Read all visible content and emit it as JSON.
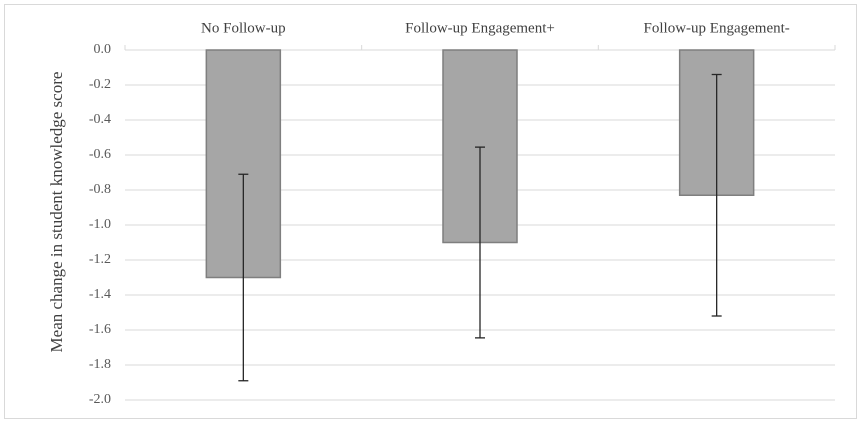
{
  "chart_data": {
    "type": "bar",
    "y_label": "Mean change in student knowledge score",
    "categories": [
      "No Follow-up",
      "Follow-up Engagement+",
      "Follow-up Engagement-"
    ],
    "values": [
      -1.3,
      -1.1,
      -0.83
    ],
    "errors": [
      0.59,
      0.545,
      0.69
    ],
    "color": "#a6a6a6",
    "ylim": [
      -2.0,
      0
    ],
    "yticks": [
      {
        "value": 0,
        "label": "0.0"
      },
      -0.2,
      -0.4,
      -0.6,
      -0.8,
      {
        "value": -1.0,
        "label": "-1.0"
      },
      -1.2,
      -1.4,
      -1.6,
      -1.8,
      {
        "value": -2.0,
        "label": "-2.0"
      }
    ],
    "grid": true
  }
}
